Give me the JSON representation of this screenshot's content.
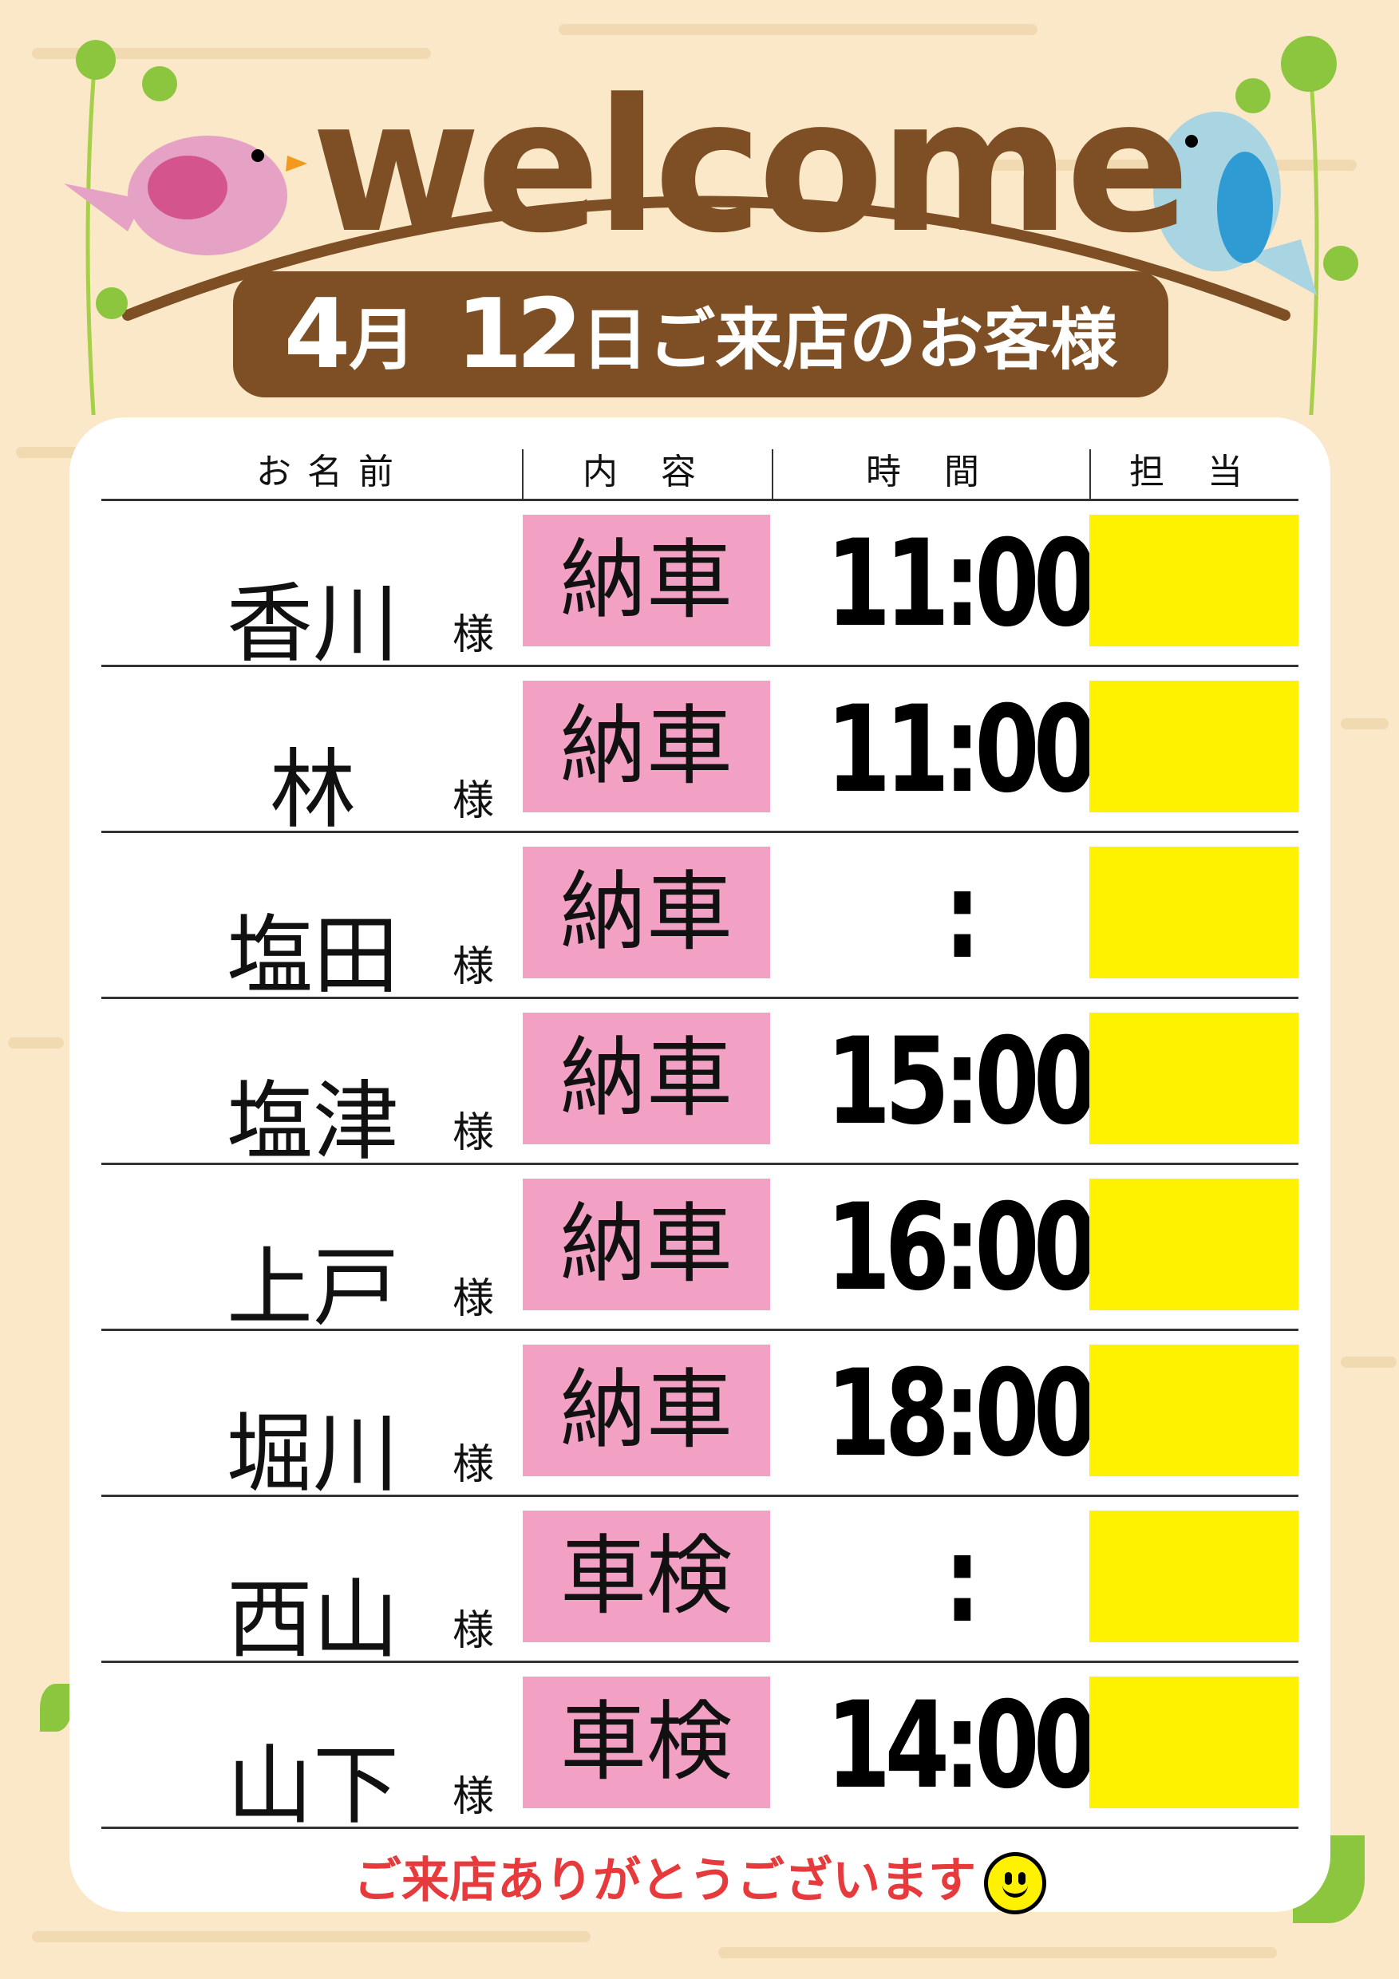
{
  "header": {
    "title": "welcome",
    "date_month": "4",
    "month_suffix": "月",
    "date_day": "12",
    "banner_suffix": "日ご来店のお客様"
  },
  "columns": [
    "お名前",
    "内 容",
    "時 間",
    "担 当"
  ],
  "honorific": "様",
  "rows": [
    {
      "name": "香川",
      "content": "納車",
      "time": "11:00",
      "staff": ""
    },
    {
      "name": "林",
      "content": "納車",
      "time": "11:00",
      "staff": ""
    },
    {
      "name": "塩田",
      "content": "納車",
      "time": ":",
      "staff": ""
    },
    {
      "name": "塩津",
      "content": "納車",
      "time": "15:00",
      "staff": ""
    },
    {
      "name": "上戸",
      "content": "納車",
      "time": "16:00",
      "staff": ""
    },
    {
      "name": "堀川",
      "content": "納車",
      "time": "18:00",
      "staff": ""
    },
    {
      "name": "西山",
      "content": "車検",
      "time": ":",
      "staff": ""
    },
    {
      "name": "山下",
      "content": "車検",
      "time": "14:00",
      "staff": ""
    }
  ],
  "footer": {
    "message": "ご来店ありがとうございます",
    "icon": "smiley-face-icon"
  },
  "colors": {
    "brown": "#7e4f24",
    "content_bg": "#f2a0c4",
    "staff_bg": "#fff200",
    "footer_text": "#e63a3d",
    "background": "#fbe8c9"
  }
}
